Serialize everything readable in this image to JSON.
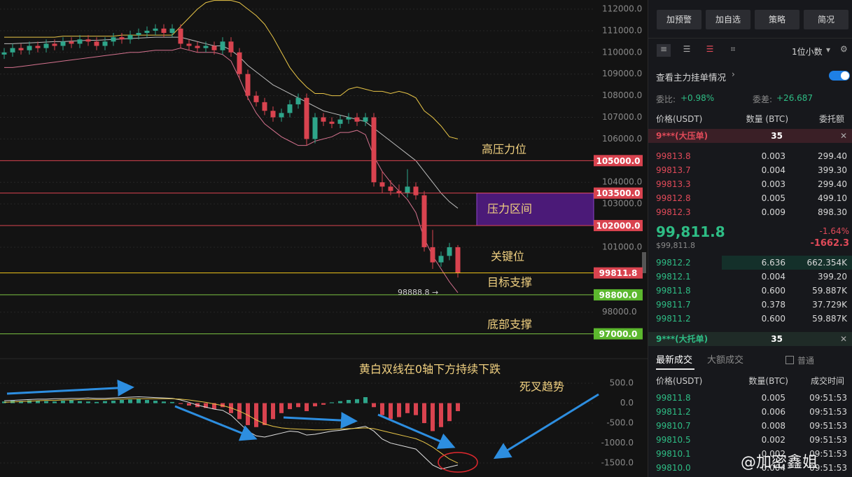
{
  "chart_data": [
    {
      "type": "candlestick",
      "ylim": [
        96080,
        112420
      ],
      "yticks": [
        {
          "value": 112000,
          "label": "112000.0"
        },
        {
          "value": 111000,
          "label": "111000.0"
        },
        {
          "value": 110000,
          "label": "110000.0"
        },
        {
          "value": 109000,
          "label": "109000.0"
        },
        {
          "value": 108000,
          "label": "108000.0"
        },
        {
          "value": 107000,
          "label": "107000.0"
        },
        {
          "value": 106000,
          "label": "106000.0"
        },
        {
          "value": 104000,
          "label": "104000.0"
        },
        {
          "value": 103000,
          "label": "103000.0"
        },
        {
          "value": 101000,
          "label": "101000.0"
        },
        {
          "value": 98000,
          "label": "98000.0"
        }
      ],
      "up_color": "#2ea58a",
      "down_color": "#d9434f",
      "open": [
        109900,
        110000,
        110200,
        110100,
        110300,
        110200,
        110400,
        110300,
        110500,
        110400,
        110600,
        110500,
        110300,
        110500,
        110700,
        110600,
        110800,
        110900,
        111000,
        111100,
        110900,
        111100,
        110400,
        110300,
        110200,
        110300,
        110100,
        110500,
        110000,
        109000,
        108000,
        107700,
        107300,
        107000,
        107200,
        107600,
        107900,
        106000,
        107000,
        106800,
        106700,
        106900,
        107000,
        106800,
        107000,
        104000,
        103800,
        103600,
        103500,
        103800,
        103400,
        101000,
        100300,
        100600,
        101000
      ],
      "close": [
        110000,
        110200,
        110100,
        110300,
        110200,
        110400,
        110300,
        110500,
        110400,
        110600,
        110500,
        110300,
        110500,
        110700,
        110600,
        110800,
        110900,
        111000,
        111100,
        110900,
        111100,
        110400,
        110300,
        110200,
        110300,
        110100,
        110500,
        110000,
        109000,
        108000,
        107700,
        107300,
        107000,
        107200,
        107600,
        107900,
        106000,
        107000,
        106800,
        106700,
        106900,
        107000,
        106800,
        107000,
        104000,
        103800,
        103600,
        103500,
        103800,
        103400,
        101000,
        100300,
        100600,
        101000,
        99811.8
      ],
      "high": [
        110200,
        110400,
        110400,
        110500,
        110500,
        110600,
        110600,
        110700,
        110700,
        110800,
        110800,
        110700,
        110700,
        110900,
        110900,
        111000,
        111100,
        111200,
        111300,
        111300,
        111300,
        111300,
        110600,
        110500,
        110500,
        110500,
        110700,
        110700,
        110200,
        109200,
        108200,
        107900,
        107500,
        107400,
        107800,
        108100,
        108100,
        107200,
        107200,
        107000,
        107100,
        107200,
        107200,
        107200,
        107200,
        104500,
        104100,
        103900,
        104600,
        104000,
        103600,
        101800,
        100800,
        101200,
        101100
      ],
      "low": [
        109700,
        109800,
        109900,
        109900,
        110000,
        110000,
        110100,
        110100,
        110200,
        110200,
        110300,
        110100,
        110100,
        110300,
        110400,
        110400,
        110600,
        110700,
        110800,
        110700,
        110700,
        110200,
        110100,
        110000,
        110000,
        109900,
        109900,
        109800,
        108800,
        107800,
        107500,
        107100,
        106800,
        106800,
        107000,
        107400,
        105700,
        105800,
        106600,
        106500,
        106500,
        106700,
        106600,
        106600,
        103800,
        103500,
        103400,
        103300,
        103300,
        103200,
        100800,
        100000,
        100100,
        100400,
        99600
      ],
      "bands": [
        {
          "color": "#e8c547",
          "values": [
            110700,
            110700,
            110700,
            110700,
            110700,
            110700,
            110700,
            110750,
            110750,
            110750,
            110750,
            110750,
            110750,
            110750,
            110800,
            110800,
            110800,
            110800,
            110800,
            110800,
            110800,
            111200,
            111600,
            112000,
            112300,
            112400,
            112400,
            112400,
            112300,
            112000,
            111700,
            111300,
            110700,
            110000,
            109300,
            108800,
            108400,
            108100,
            108100,
            108000,
            108000,
            108300,
            108400,
            108300,
            108200,
            108200,
            108100,
            108200,
            108100,
            107900,
            107300,
            107000,
            106600,
            106100,
            106000
          ]
        },
        {
          "color": "#bdbdbd",
          "values": [
            110400,
            110400,
            110420,
            110440,
            110460,
            110480,
            110500,
            110500,
            110520,
            110540,
            110560,
            110560,
            110580,
            110600,
            110620,
            110640,
            110660,
            110680,
            110700,
            110700,
            110700,
            110700,
            110600,
            110500,
            110400,
            110300,
            110300,
            110100,
            109800,
            109400,
            109100,
            108800,
            108500,
            108300,
            108100,
            107900,
            107700,
            107500,
            107300,
            107200,
            107100,
            107000,
            106900,
            106800,
            106500,
            106200,
            105900,
            105600,
            105300,
            105000,
            104500,
            104000,
            103500,
            103100,
            102800
          ]
        },
        {
          "color": "#d4728e",
          "values": [
            109300,
            109300,
            109350,
            109400,
            109450,
            109500,
            109550,
            109600,
            109650,
            109700,
            109750,
            109800,
            109850,
            109900,
            109950,
            110000,
            110000,
            110050,
            110100,
            110100,
            110100,
            110200,
            110100,
            110000,
            110000,
            110000,
            109900,
            109600,
            108800,
            107900,
            107200,
            106700,
            106400,
            106100,
            105900,
            105700,
            105700,
            105900,
            106000,
            106100,
            106300,
            106300,
            106400,
            106200,
            105200,
            104500,
            104000,
            103600,
            103200,
            102600,
            101400,
            100600,
            100000,
            99400,
            98900
          ]
        }
      ],
      "levels": [
        {
          "value": 105000,
          "label": "105000.0",
          "color": "#d9434f",
          "box": "#d9434f"
        },
        {
          "value": 103500,
          "label": "103500.0",
          "color": "#d9434f",
          "box": "#d9434f"
        },
        {
          "value": 102000,
          "label": "102000.0",
          "color": "#d9434f",
          "box": "#d9434f"
        },
        {
          "value": 99811.8,
          "label": "99811.8",
          "color": "#f0c419",
          "box": "#d9434f"
        },
        {
          "value": 98800,
          "label": "98800.0",
          "color": "#7cc242",
          "box": "#5cb82e"
        },
        {
          "value": 97000,
          "label": "97000.0",
          "color": "#7cc242",
          "box": "#5cb82e"
        }
      ],
      "zone": {
        "label": "压力区间",
        "range": [
          103500,
          102000
        ],
        "color": "#4b1a78",
        "border": "#8e44c8"
      },
      "marker": {
        "value": 98888.8,
        "label": "98888.8 →"
      },
      "annotations": [
        "高压力位",
        "关键位",
        "目标支撑",
        "底部支撑"
      ]
    },
    {
      "type": "macd",
      "ylim": [
        -1850,
        1010
      ],
      "yticks": [
        {
          "value": 500,
          "label": "500.0"
        },
        {
          "value": 0,
          "label": "0.0"
        },
        {
          "value": -500,
          "label": "-500.0"
        },
        {
          "value": -1000,
          "label": "-1000.0"
        },
        {
          "value": -1500,
          "label": "-1500.0"
        }
      ],
      "up_color": "#2ea58a",
      "down_color": "#d9434f",
      "histogram": [
        40,
        60,
        50,
        70,
        60,
        50,
        40,
        60,
        70,
        50,
        40,
        30,
        50,
        60,
        80,
        90,
        100,
        80,
        60,
        40,
        30,
        -20,
        -60,
        -100,
        -120,
        -150,
        -100,
        -250,
        -400,
        -550,
        -600,
        -550,
        -400,
        -250,
        -150,
        -100,
        -200,
        -80,
        -40,
        20,
        50,
        80,
        100,
        150,
        -100,
        -300,
        -400,
        -350,
        -250,
        -300,
        -500,
        -700,
        -600,
        -450,
        -200
      ],
      "lines": [
        {
          "color": "#e0e0e0",
          "values": [
            60,
            70,
            80,
            90,
            100,
            100,
            110,
            110,
            120,
            120,
            130,
            120,
            120,
            130,
            140,
            150,
            160,
            150,
            140,
            130,
            120,
            80,
            20,
            -50,
            -100,
            -150,
            -180,
            -300,
            -500,
            -700,
            -820,
            -850,
            -800,
            -750,
            -700,
            -720,
            -800,
            -780,
            -740,
            -700,
            -680,
            -650,
            -620,
            -580,
            -700,
            -900,
            -1000,
            -1050,
            -1100,
            -1150,
            -1350,
            -1550,
            -1650,
            -1600,
            -1550
          ]
        },
        {
          "color": "#e8c547",
          "values": [
            20,
            30,
            40,
            50,
            60,
            70,
            70,
            80,
            80,
            90,
            90,
            90,
            90,
            100,
            100,
            110,
            110,
            110,
            110,
            110,
            110,
            100,
            80,
            50,
            20,
            -20,
            -60,
            -120,
            -200,
            -300,
            -420,
            -520,
            -580,
            -620,
            -640,
            -650,
            -660,
            -670,
            -670,
            -660,
            -650,
            -640,
            -630,
            -620,
            -640,
            -690,
            -740,
            -790,
            -840,
            -890,
            -980,
            -1100,
            -1250,
            -1400,
            -1500
          ]
        }
      ],
      "annotations": [
        "黄白双线在0轴下方持续下跌",
        "死叉趋势"
      ]
    }
  ],
  "panel": {
    "buttons": [
      "加预警",
      "加自选",
      "策略",
      "简况"
    ],
    "decimals": "1位小数",
    "depth_toggle": "查看主力挂单情况",
    "ratio": {
      "label": "委比:",
      "value": "+0.98%"
    },
    "diff": {
      "label": "委差:",
      "value": "+26.687"
    },
    "book_header": [
      "价格(USDT)",
      "数量 (BTC)",
      "委托额"
    ],
    "big_ask": {
      "name": "9***(大压单)",
      "amount": "35"
    },
    "asks": [
      [
        "99813.8",
        "0.003",
        "299.40"
      ],
      [
        "99813.7",
        "0.004",
        "399.30"
      ],
      [
        "99813.3",
        "0.003",
        "299.40"
      ],
      [
        "99812.8",
        "0.005",
        "499.10"
      ],
      [
        "99812.3",
        "0.009",
        "898.30"
      ]
    ],
    "last_price": "99,811.8",
    "last_usd": "$99,811.8",
    "change_pct": "-1.64%",
    "change": "-1662.3",
    "bids": [
      [
        "99812.2",
        "6.636",
        "662.354K"
      ],
      [
        "99812.1",
        "0.004",
        "399.20"
      ],
      [
        "99811.8",
        "0.600",
        "59.887K"
      ],
      [
        "99811.7",
        "0.378",
        "37.729K"
      ],
      [
        "99811.2",
        "0.600",
        "59.887K"
      ]
    ],
    "big_bid": {
      "name": "9***(大托单)",
      "amount": "35"
    },
    "tabs": [
      "最新成交",
      "大额成交"
    ],
    "filter": "普通",
    "trade_header": [
      "价格(USDT)",
      "数量(BTC)",
      "成交时间"
    ],
    "trades": [
      [
        "99811.8",
        "0.005",
        "09:51:53"
      ],
      [
        "99811.2",
        "0.006",
        "09:51:53"
      ],
      [
        "99810.7",
        "0.008",
        "09:51:53"
      ],
      [
        "99810.5",
        "0.002",
        "09:51:53"
      ],
      [
        "99810.1",
        "0.002",
        "09:51:53"
      ],
      [
        "99810.0",
        "0.004",
        "09:51:53"
      ]
    ]
  },
  "watermark": "@加密鑫姐"
}
